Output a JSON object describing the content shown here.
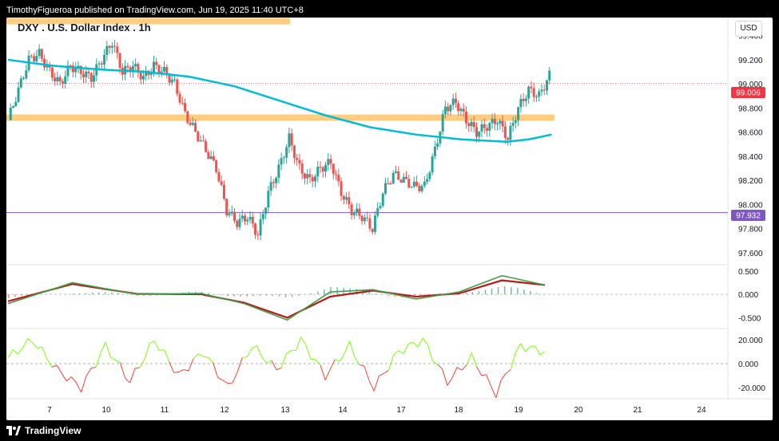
{
  "header": {
    "publisher_line": "TimothyFigueroa published on TradingView.com, Jun 19, 2025 11:40 UTC+8"
  },
  "footer": {
    "brand": "TradingView",
    "logo_icon": "tradingview-logo-icon"
  },
  "chart": {
    "title": "DXY . U.S. Dollar Index . 1h",
    "currency": "USD",
    "price_axis_ticks": [
      "99.400",
      "99.200",
      "99.000",
      "98.800",
      "98.600",
      "98.400",
      "98.200",
      "98.000",
      "97.800",
      "97.600"
    ],
    "last_price_label": "99.006",
    "horizontal_line_label": "97.932",
    "macd_axis_ticks": [
      "0.500",
      "0.000",
      "-0.500"
    ],
    "osc_axis_ticks": [
      "20.000",
      "0.000",
      "-20.000"
    ],
    "time_axis_ticks": [
      "7",
      "10",
      "11",
      "12",
      "13",
      "14",
      "17",
      "18",
      "19",
      "20",
      "21",
      "24"
    ],
    "colors": {
      "bull": "#26a69a",
      "bear": "#ef5350",
      "ma": "#00bcd4",
      "zone": "#ffcc80",
      "hline": "#7e57c2",
      "last": "#f23645"
    }
  },
  "chart_data": {
    "type": "candlestick",
    "title": "DXY . U.S. Dollar Index . 1h",
    "xlabel": "",
    "ylabel": "",
    "x_range_days": [
      "7",
      "24"
    ],
    "ylim": [
      97.5,
      99.55
    ],
    "resistance_zones": [
      99.52,
      98.72
    ],
    "horizontal_line": 97.932,
    "last_price": 99.006,
    "moving_average": [
      [
        0,
        99.2
      ],
      [
        20,
        99.15
      ],
      [
        40,
        99.12
      ],
      [
        60,
        99.1
      ],
      [
        80,
        99.06
      ],
      [
        100,
        98.98
      ],
      [
        120,
        98.86
      ],
      [
        140,
        98.74
      ],
      [
        160,
        98.64
      ],
      [
        180,
        98.58
      ],
      [
        200,
        98.54
      ],
      [
        220,
        98.52
      ],
      [
        230,
        98.54
      ],
      [
        240,
        98.58
      ]
    ],
    "candles_close_path": [
      [
        0,
        98.7
      ],
      [
        4,
        98.95
      ],
      [
        8,
        99.2
      ],
      [
        12,
        99.25
      ],
      [
        16,
        99.1
      ],
      [
        20,
        99.0
      ],
      [
        24,
        99.15
      ],
      [
        28,
        99.1
      ],
      [
        32,
        99.05
      ],
      [
        36,
        99.2
      ],
      [
        40,
        99.35
      ],
      [
        44,
        99.1
      ],
      [
        48,
        99.15
      ],
      [
        52,
        99.05
      ],
      [
        56,
        99.15
      ],
      [
        60,
        99.1
      ],
      [
        64,
        99.0
      ],
      [
        68,
        98.75
      ],
      [
        72,
        98.6
      ],
      [
        76,
        98.45
      ],
      [
        80,
        98.3
      ],
      [
        84,
        97.95
      ],
      [
        88,
        97.85
      ],
      [
        92,
        97.9
      ],
      [
        96,
        97.75
      ],
      [
        100,
        98.1
      ],
      [
        104,
        98.3
      ],
      [
        108,
        98.55
      ],
      [
        112,
        98.3
      ],
      [
        116,
        98.2
      ],
      [
        120,
        98.3
      ],
      [
        124,
        98.35
      ],
      [
        128,
        98.1
      ],
      [
        132,
        97.95
      ],
      [
        136,
        97.9
      ],
      [
        140,
        97.8
      ],
      [
        144,
        98.1
      ],
      [
        148,
        98.25
      ],
      [
        152,
        98.2
      ],
      [
        156,
        98.15
      ],
      [
        160,
        98.15
      ],
      [
        164,
        98.45
      ],
      [
        168,
        98.8
      ],
      [
        172,
        98.85
      ],
      [
        176,
        98.7
      ],
      [
        180,
        98.6
      ],
      [
        184,
        98.65
      ],
      [
        188,
        98.7
      ],
      [
        192,
        98.55
      ],
      [
        196,
        98.8
      ],
      [
        200,
        98.95
      ],
      [
        204,
        98.9
      ],
      [
        208,
        99.07
      ]
    ],
    "macd_series": {
      "line": [
        [
          0,
          -0.2
        ],
        [
          30,
          0.25
        ],
        [
          60,
          0.0
        ],
        [
          90,
          0.02
        ],
        [
          110,
          -0.2
        ],
        [
          130,
          -0.55
        ],
        [
          150,
          0.05
        ],
        [
          170,
          0.1
        ],
        [
          190,
          -0.1
        ],
        [
          210,
          0.05
        ],
        [
          230,
          0.4
        ],
        [
          250,
          0.2
        ]
      ],
      "signal": [
        [
          0,
          -0.15
        ],
        [
          30,
          0.22
        ],
        [
          60,
          0.01
        ],
        [
          90,
          0.0
        ],
        [
          110,
          -0.18
        ],
        [
          130,
          -0.5
        ],
        [
          150,
          -0.05
        ],
        [
          170,
          0.08
        ],
        [
          190,
          -0.05
        ],
        [
          210,
          0.02
        ],
        [
          230,
          0.3
        ],
        [
          250,
          0.2
        ]
      ]
    },
    "oscillator": [
      [
        0,
        5
      ],
      [
        10,
        20
      ],
      [
        20,
        -5
      ],
      [
        30,
        -20
      ],
      [
        40,
        15
      ],
      [
        50,
        -15
      ],
      [
        60,
        20
      ],
      [
        70,
        -10
      ],
      [
        80,
        10
      ],
      [
        90,
        -20
      ],
      [
        100,
        15
      ],
      [
        110,
        -5
      ],
      [
        120,
        20
      ],
      [
        130,
        -10
      ],
      [
        140,
        15
      ],
      [
        150,
        -20
      ],
      [
        160,
        10
      ],
      [
        170,
        20
      ],
      [
        180,
        -15
      ],
      [
        190,
        5
      ],
      [
        200,
        -25
      ],
      [
        210,
        15
      ],
      [
        220,
        10
      ]
    ]
  }
}
